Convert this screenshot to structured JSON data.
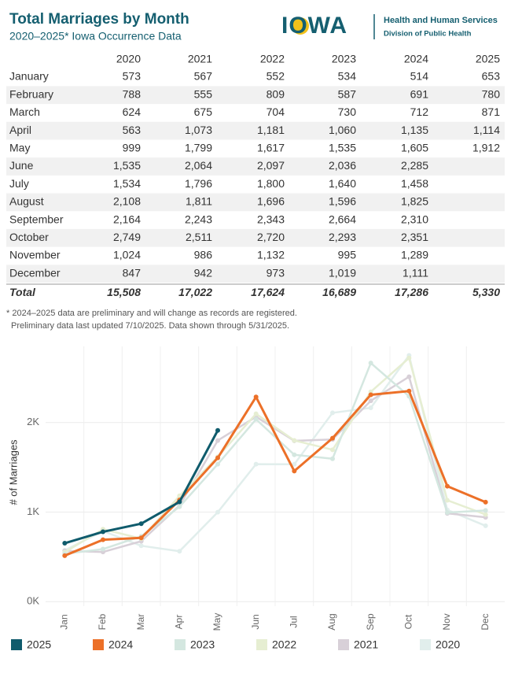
{
  "header": {
    "title": "Total Marriages by Month",
    "subtitle": "2020–2025* Iowa Occurrence Data",
    "logo": "IOWA",
    "org": "Health and Human Services",
    "division": "Division of Public Health"
  },
  "table": {
    "columns": [
      "2020",
      "2021",
      "2022",
      "2023",
      "2024",
      "2025"
    ],
    "rows": [
      {
        "label": "January",
        "cells": [
          "573",
          "567",
          "552",
          "534",
          "514",
          "653"
        ]
      },
      {
        "label": "February",
        "cells": [
          "788",
          "555",
          "809",
          "587",
          "691",
          "780"
        ]
      },
      {
        "label": "March",
        "cells": [
          "624",
          "675",
          "704",
          "730",
          "712",
          "871"
        ]
      },
      {
        "label": "April",
        "cells": [
          "563",
          "1,073",
          "1,181",
          "1,060",
          "1,135",
          "1,114"
        ]
      },
      {
        "label": "May",
        "cells": [
          "999",
          "1,799",
          "1,617",
          "1,535",
          "1,605",
          "1,912"
        ]
      },
      {
        "label": "June",
        "cells": [
          "1,535",
          "2,064",
          "2,097",
          "2,036",
          "2,285"
        ]
      },
      {
        "label": "July",
        "cells": [
          "1,534",
          "1,796",
          "1,800",
          "1,640",
          "1,458"
        ]
      },
      {
        "label": "August",
        "cells": [
          "2,108",
          "1,811",
          "1,696",
          "1,596",
          "1,825"
        ]
      },
      {
        "label": "September",
        "cells": [
          "2,164",
          "2,243",
          "2,343",
          "2,664",
          "2,310"
        ]
      },
      {
        "label": "October",
        "cells": [
          "2,749",
          "2,511",
          "2,720",
          "2,293",
          "2,351"
        ]
      },
      {
        "label": "November",
        "cells": [
          "1,024",
          "986",
          "1,132",
          "995",
          "1,289"
        ]
      },
      {
        "label": "December",
        "cells": [
          "847",
          "942",
          "973",
          "1,019",
          "1,111"
        ]
      }
    ],
    "total": {
      "label": "Total",
      "cells": [
        "15,508",
        "17,022",
        "17,624",
        "16,689",
        "17,286",
        "5,330"
      ]
    }
  },
  "footnotes": [
    "* 2024–2025 data are preliminary and will change as records are registered.",
    "Preliminary data last updated 7/10/2025. Data shown through 5/31/2025."
  ],
  "chart_data": {
    "type": "line",
    "y_label": "# of Marriages",
    "categories": [
      "Jan",
      "Feb",
      "Mar",
      "Apr",
      "May",
      "Jun",
      "Jul",
      "Aug",
      "Sep",
      "Oct",
      "Nov",
      "Dec"
    ],
    "ylim": [
      -50,
      2850
    ],
    "yticks": [
      {
        "value": 0,
        "label": "0K"
      },
      {
        "value": 1000,
        "label": "1K"
      },
      {
        "value": 2000,
        "label": "2K"
      }
    ],
    "grid": true,
    "series": [
      {
        "name": "2025",
        "color": "#0f5b6c",
        "width": 3,
        "values": [
          653,
          780,
          871,
          1114,
          1912,
          null,
          null,
          null,
          null,
          null,
          null,
          null
        ]
      },
      {
        "name": "2024",
        "color": "#ec7028",
        "width": 3,
        "values": [
          514,
          691,
          712,
          1135,
          1605,
          2285,
          1458,
          1825,
          2310,
          2351,
          1289,
          1111
        ]
      },
      {
        "name": "2023",
        "color": "#d4e7e0",
        "width": 2.5,
        "values": [
          534,
          587,
          730,
          1060,
          1535,
          2036,
          1640,
          1596,
          2664,
          2293,
          995,
          1019
        ]
      },
      {
        "name": "2022",
        "color": "#e6eed2",
        "width": 2.5,
        "values": [
          552,
          809,
          704,
          1181,
          1617,
          2097,
          1800,
          1696,
          2343,
          2720,
          1132,
          973
        ]
      },
      {
        "name": "2021",
        "color": "#d8d0d8",
        "width": 2.5,
        "values": [
          567,
          555,
          675,
          1073,
          1799,
          2064,
          1796,
          1811,
          2243,
          2511,
          986,
          942
        ]
      },
      {
        "name": "2020",
        "color": "#e1eeec",
        "width": 2.5,
        "values": [
          573,
          788,
          624,
          563,
          999,
          1535,
          1534,
          2108,
          2164,
          2749,
          1024,
          847
        ]
      }
    ]
  }
}
